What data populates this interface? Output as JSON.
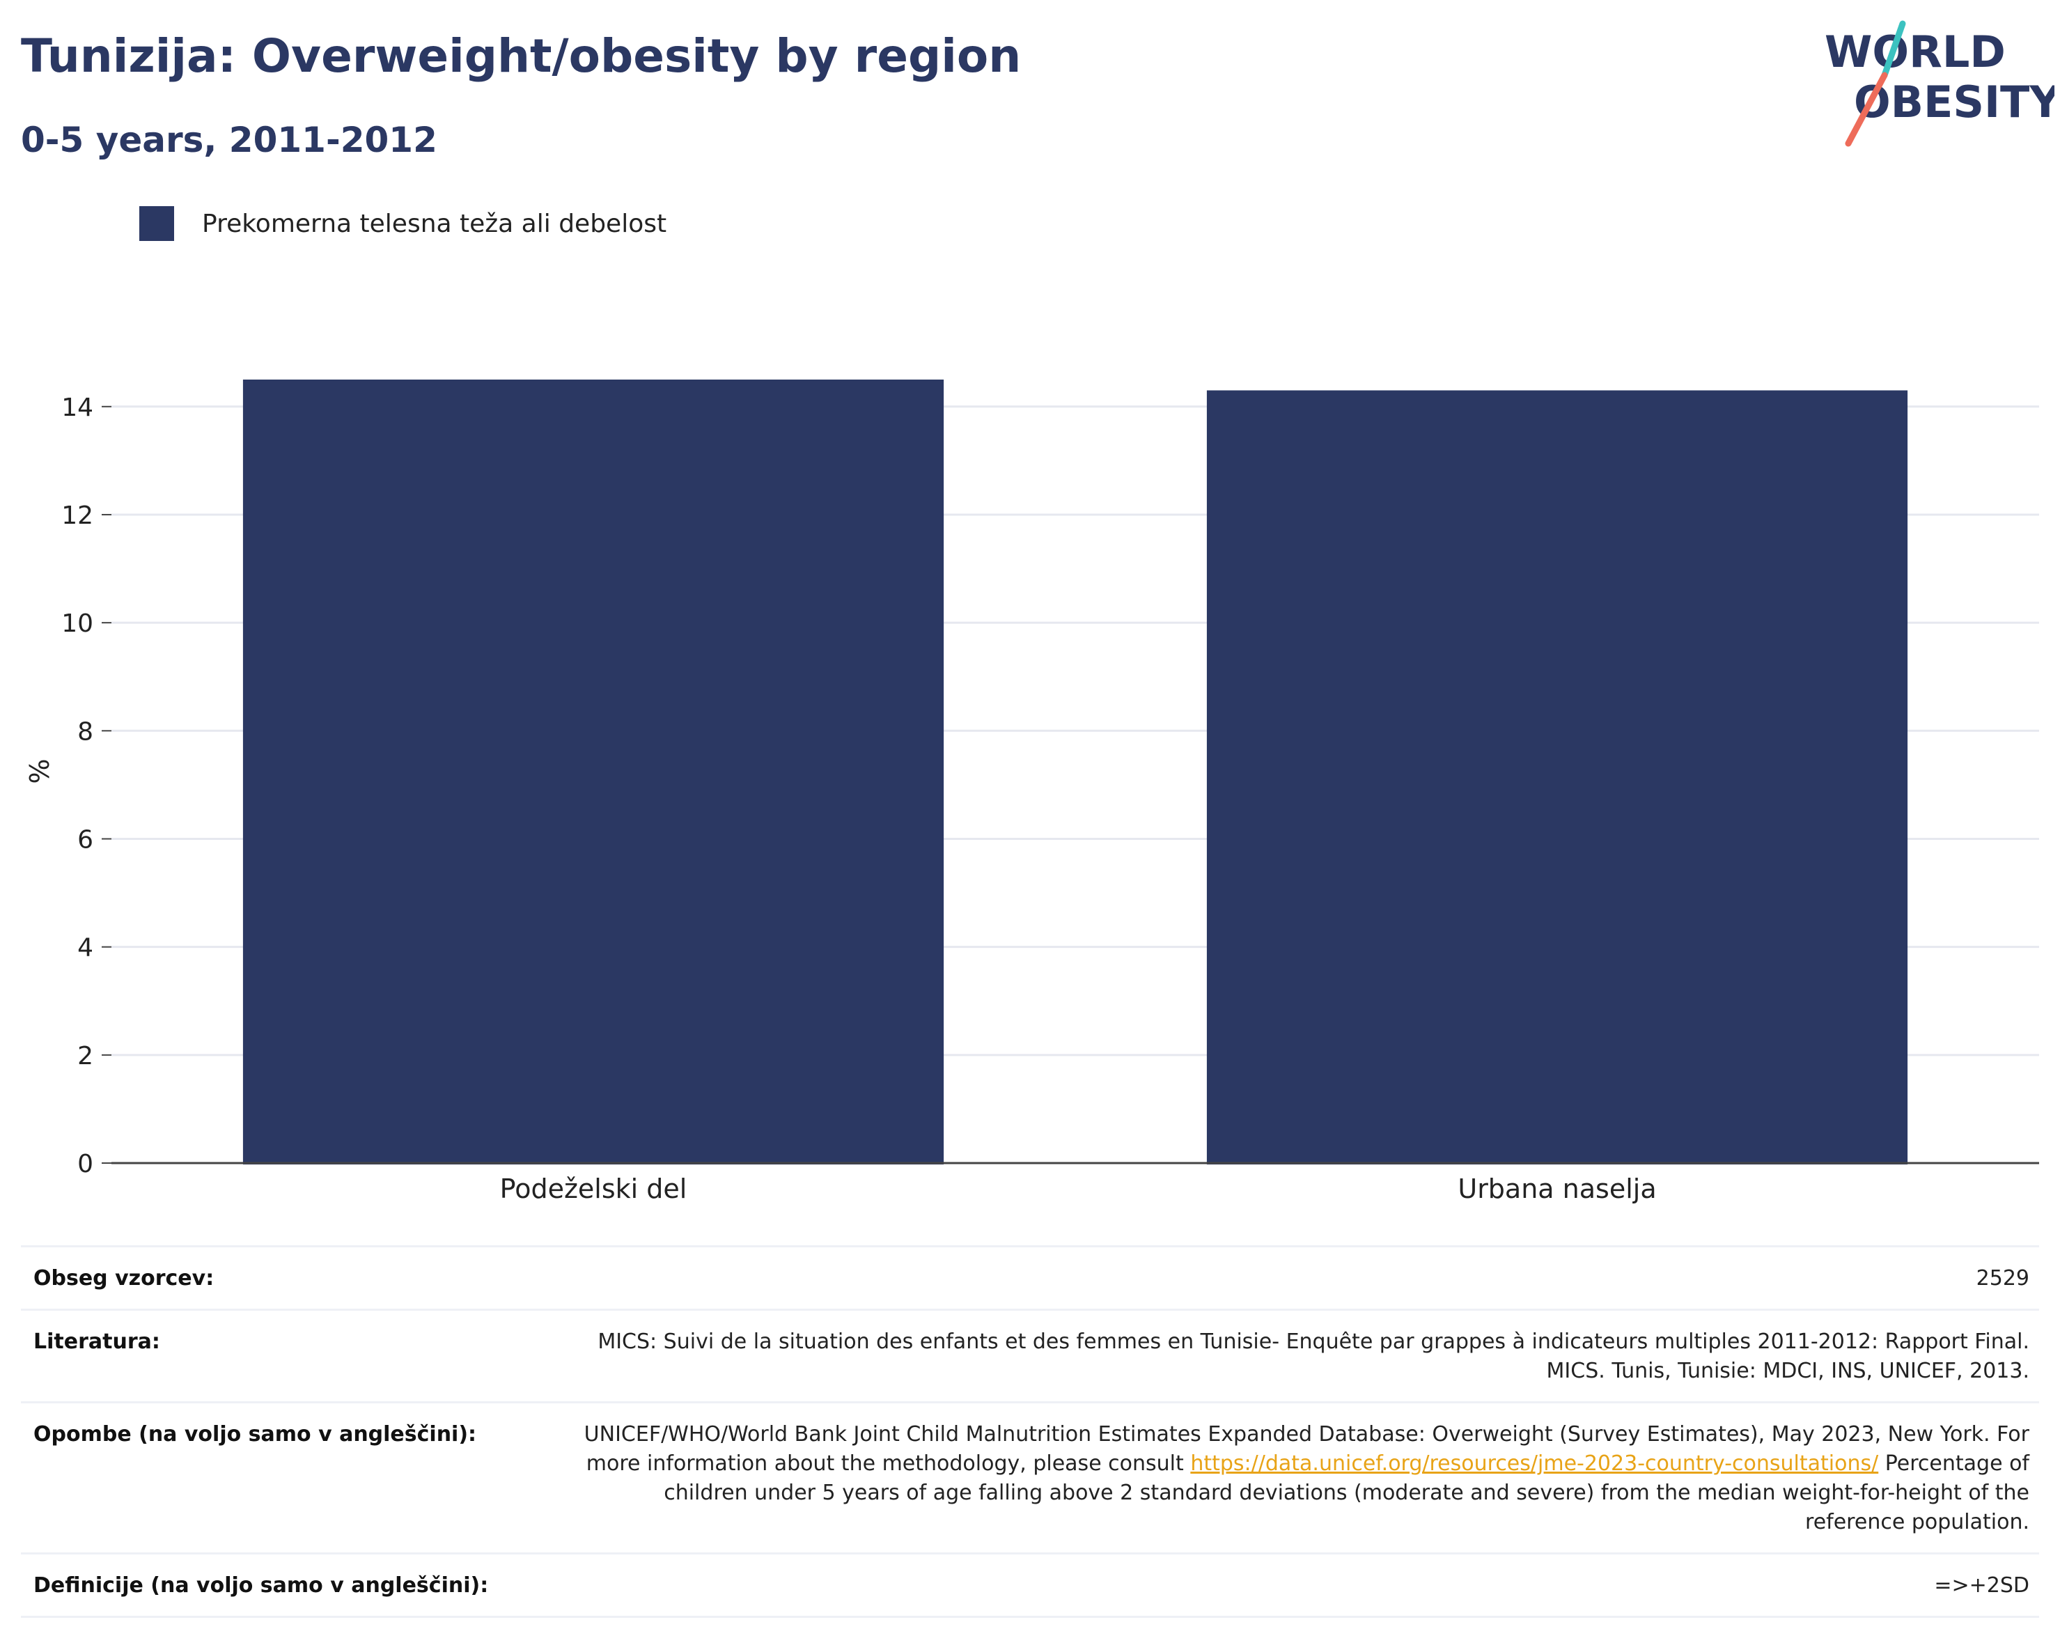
{
  "header": {
    "title": "Tunizija: Overweight/obesity by region",
    "subtitle": "0-5 years, 2011-2012"
  },
  "logo": {
    "line1": "WORLD",
    "line2": "OBESITY",
    "colors": {
      "text": "#2b3863",
      "slash_top": "#3cc2c0",
      "slash_bottom": "#ee6c5a"
    }
  },
  "legend": {
    "label": "Prekomerna telesna teža ali debelost",
    "color": "#2b3863"
  },
  "chart_data": {
    "type": "bar",
    "categories": [
      "Podeželski del",
      "Urbana naselja"
    ],
    "series": [
      {
        "name": "Prekomerna telesna teža ali debelost",
        "values": [
          14.5,
          14.3
        ],
        "color": "#2b3863"
      }
    ],
    "ylabel": "%",
    "ylim": [
      0,
      14.5
    ],
    "yticks": [
      0,
      2,
      4,
      6,
      8,
      10,
      12,
      14
    ],
    "grid": true,
    "legend_position": "top-left"
  },
  "info": {
    "sample_size": {
      "label": "Obseg vzorcev:",
      "value": "2529"
    },
    "literature": {
      "label": "Literatura:",
      "value": "MICS: Suivi de la situation des enfants et des femmes en Tunisie- Enquête par grappes à indicateurs multiples 2011-2012: Rapport Final. MICS. Tunis, Tunisie: MDCI, INS, UNICEF, 2013."
    },
    "notes": {
      "label": "Opombe (na voljo samo v angleščini):",
      "text_before": "UNICEF/WHO/World Bank Joint Child Malnutrition Estimates Expanded Database: Overweight (Survey Estimates), May 2023, New York. For more information about the methodology, please consult ",
      "link": "https://data.unicef.org/resources/jme-2023-country-consultations/",
      "text_after": " Percentage of children under 5 years of age falling above 2 standard deviations (moderate and severe) from the median weight-for-height of the reference population."
    },
    "definitions": {
      "label": "Definicije (na voljo samo v angleščini):",
      "value": "=>+2SD"
    }
  }
}
